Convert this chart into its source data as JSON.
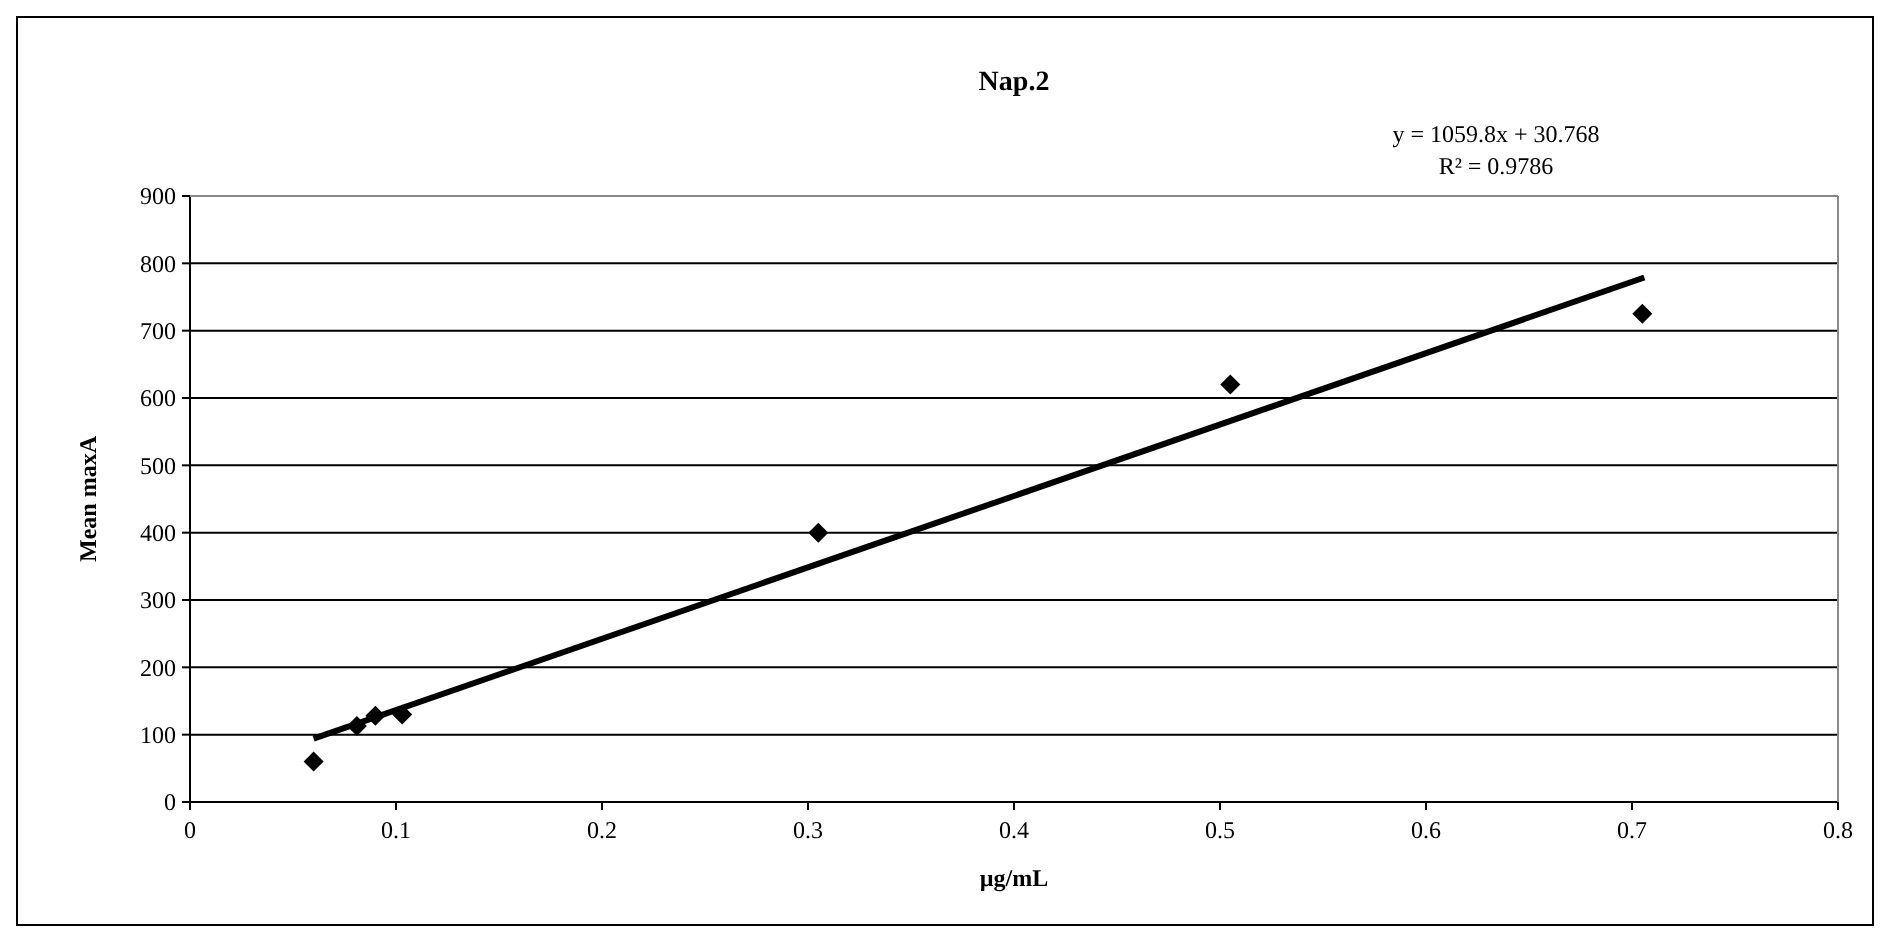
{
  "chart_data": {
    "type": "scatter",
    "title": "Nap.2",
    "xlabel": "µg/mL",
    "ylabel": "Mean maxA",
    "xlim": [
      0,
      0.8
    ],
    "xticks": [
      0,
      0.1,
      0.2,
      0.3,
      0.4,
      0.5,
      0.6,
      0.7,
      0.8
    ],
    "ylim": [
      0,
      900
    ],
    "yticks": [
      0,
      100,
      200,
      300,
      400,
      500,
      600,
      700,
      800,
      900
    ],
    "grid": "y",
    "marker": "diamond",
    "annotations": [
      "y = 1059.8x + 30.768",
      "R² = 0.9786"
    ],
    "series": [
      {
        "color": "#000000",
        "x": [
          0.06,
          0.081,
          0.09,
          0.103,
          0.305,
          0.505,
          0.705
        ],
        "values": [
          60,
          113,
          128,
          130,
          400,
          620,
          725
        ]
      },
      {
        "type": "line",
        "color": "#000000",
        "marker": "none",
        "line_style": "solid",
        "x": [
          0.06,
          0.706
        ],
        "values": [
          94,
          779
        ]
      }
    ]
  }
}
